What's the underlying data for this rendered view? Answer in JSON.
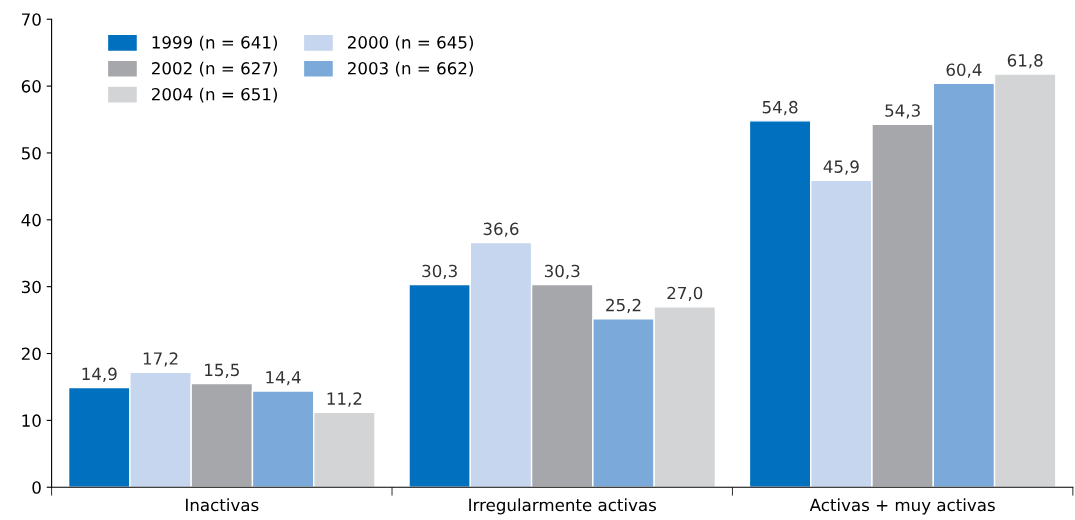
{
  "chart_data": {
    "type": "bar",
    "categories": [
      "Inactivas",
      "Irregularmente activas",
      "Activas + muy activas"
    ],
    "series": [
      {
        "name": "1999 (n = 641)",
        "color": "#0070bf",
        "values": [
          14.9,
          30.3,
          54.8
        ],
        "value_labels": [
          "14,9",
          "30,3",
          "54,8"
        ]
      },
      {
        "name": "2000 (n = 645)",
        "color": "#c5d6ee",
        "values": [
          17.2,
          36.6,
          45.9
        ],
        "value_labels": [
          "17,2",
          "36,6",
          "45,9"
        ]
      },
      {
        "name": "2002 (n = 627)",
        "color": "#a6a7ab",
        "values": [
          15.5,
          30.3,
          54.3
        ],
        "value_labels": [
          "15,5",
          "30,3",
          "54,3"
        ]
      },
      {
        "name": "2003 (n = 662)",
        "color": "#7baada",
        "values": [
          14.4,
          25.2,
          60.4
        ],
        "value_labels": [
          "14,4",
          "25,2",
          "60,4"
        ]
      },
      {
        "name": "2004 (n = 651)",
        "color": "#d3d4d6",
        "values": [
          11.2,
          27.0,
          61.8
        ],
        "value_labels": [
          "11,2",
          "27,0",
          "61,8"
        ]
      }
    ],
    "ylim": [
      0,
      70
    ],
    "yticks": [
      0,
      10,
      20,
      30,
      40,
      50,
      60,
      70
    ],
    "grid": false,
    "legend": "top left"
  }
}
